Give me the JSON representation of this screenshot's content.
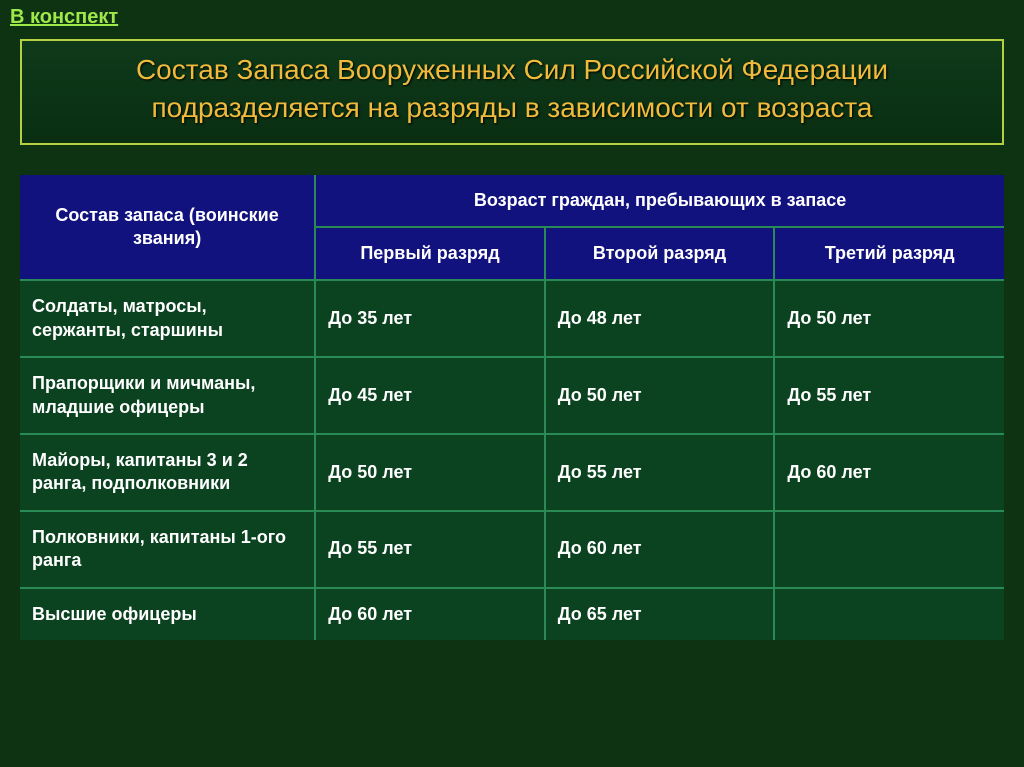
{
  "header_link": "В конспект",
  "title": "Состав Запаса Вооруженных Сил Российской Федерации подразделяется на разряды в зависимости от возраста",
  "table": {
    "head": {
      "col1": "Состав запаса (воинские звания)",
      "col_span": "Возраст граждан, пребывающих в запасе",
      "sub1": "Первый разряд",
      "sub2": "Второй разряд",
      "sub3": "Третий разряд"
    },
    "rows": [
      {
        "label": "Солдаты, матросы, сержанты, старшины",
        "c1": "До 35 лет",
        "c2": "До 48 лет",
        "c3": "До 50 лет"
      },
      {
        "label": "Прапорщики и мичманы, младшие офицеры",
        "c1": "До 45 лет",
        "c2": "До 50 лет",
        "c3": "До 55 лет"
      },
      {
        "label": "Майоры, капитаны 3 и 2 ранга, подполковники",
        "c1": "До 50 лет",
        "c2": "До 55 лет",
        "c3": "До 60 лет"
      },
      {
        "label": "Полковники, капитаны 1-ого ранга",
        "c1": "До 55 лет",
        "c2": "До 60 лет",
        "c3": ""
      },
      {
        "label": "Высшие офицеры",
        "c1": "До 60 лет",
        "c2": "До 65 лет",
        "c3": ""
      }
    ]
  },
  "colors": {
    "page_bg": "#0d3312",
    "title_border": "#b5d040",
    "title_text": "#f0bb3c",
    "header_link": "#9fe84a",
    "th_bg": "#12127f",
    "td_bg": "#0b4220",
    "cell_border": "#2a8a55"
  }
}
